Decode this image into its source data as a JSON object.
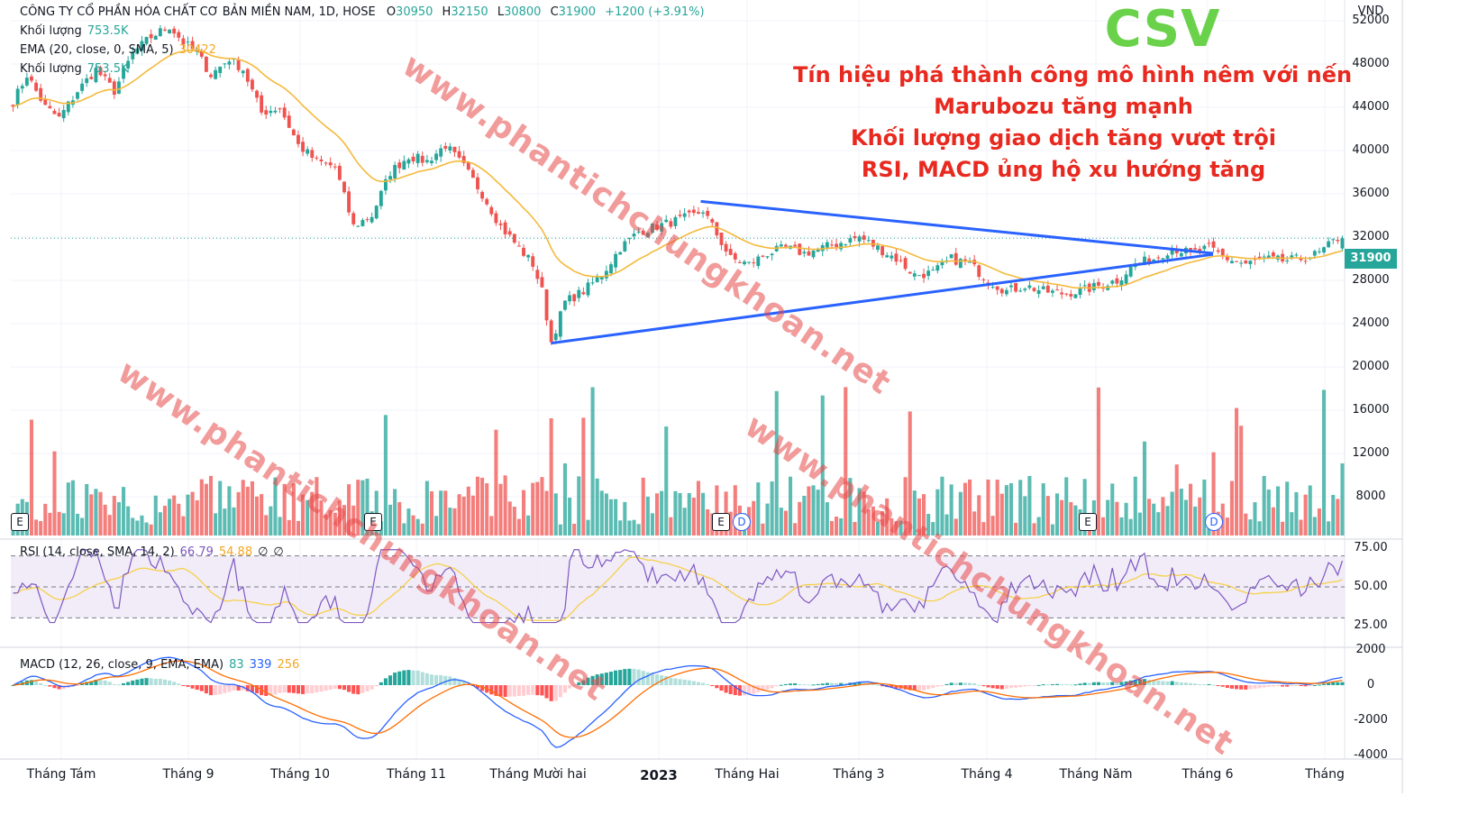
{
  "header": {
    "symbol_line": "CÔNG TY CỔ PHẦN HÓA CHẤT CƠ BẢN MIỀN NAM, 1D, HOSE",
    "open_label": "O",
    "open_value": "30950",
    "high_label": "H",
    "high_value": "32150",
    "low_label": "L",
    "low_value": "30800",
    "close_label": "C",
    "close_value": "31900",
    "change": "+1200 (+3.91%)",
    "volume_label": "Khối lượng",
    "volume_value": "753.5K",
    "ema_label": "EMA (20, close, 0, SMA, 5)",
    "ema_value": "30422",
    "volume_label_2": "Khối lượng",
    "volume_value_2": "753.5K"
  },
  "headline": "CSV",
  "notes": [
    "Tín hiệu phá thành công mô hình nêm với nến",
    "Marubozu tăng mạnh",
    "Khối lượng giao dịch tăng vượt trội",
    "RSI, MACD ủng hộ xu hướng tăng"
  ],
  "currency": "VND",
  "last_price_tag": "31900",
  "watermark_text": "www.phantichchungkhoan.net",
  "event_markers": {
    "earnings": "E",
    "dividend": "D"
  },
  "rsi": {
    "label": "RSI (14, close, SMA, 14, 2)",
    "value": "66.79",
    "ma_value": "54.88",
    "extra1": "∅",
    "extra2": "∅"
  },
  "macd": {
    "label": "MACD (12, 26, close, 9, EMA, EMA)",
    "hist": "83",
    "macd": "339",
    "signal": "256"
  },
  "colors": {
    "up": "#26a69a",
    "down": "#ef5350",
    "ema": "#f5b93c",
    "trendline": "#2962ff",
    "rsi": "#7e57c2",
    "rsi_ma": "#f7d04a",
    "macd": "#2962ff",
    "signal": "#ff6d00",
    "headline": "#6ad24a",
    "notes": "#e8291f",
    "watermark": "#e84848"
  },
  "x_labels": [
    {
      "text": "Tháng Tám",
      "bold": false
    },
    {
      "text": "Tháng 9",
      "bold": false
    },
    {
      "text": "Tháng 10",
      "bold": false
    },
    {
      "text": "Tháng 11",
      "bold": false
    },
    {
      "text": "Tháng Mười hai",
      "bold": false
    },
    {
      "text": "2023",
      "bold": true
    },
    {
      "text": "Tháng Hai",
      "bold": false
    },
    {
      "text": "Tháng 3",
      "bold": false
    },
    {
      "text": "Tháng 4",
      "bold": false
    },
    {
      "text": "Tháng Năm",
      "bold": false
    },
    {
      "text": "Tháng 6",
      "bold": false
    },
    {
      "text": "Tháng",
      "bold": false
    }
  ],
  "chart_data": {
    "type": "candlestick",
    "title": "CÔNG TY CỔ PHẦN HÓA CHẤT CƠ BẢN MIỀN NAM, 1D, HOSE",
    "price_axis": {
      "ticks": [
        "52000",
        "48000",
        "44000",
        "40000",
        "36000",
        "32000",
        "28000",
        "24000",
        "20000",
        "16000",
        "12000",
        "8000"
      ],
      "range": [
        3600,
        54200
      ]
    },
    "rsi_axis": {
      "ticks": [
        "75.00",
        "50.00",
        "25.00"
      ],
      "upper_band": 70,
      "lower_band": 30,
      "range": [
        20,
        80
      ]
    },
    "macd_axis": {
      "ticks": [
        "2000",
        "0",
        "-2000",
        "-4000"
      ],
      "range": [
        -4000,
        2000
      ]
    },
    "months": [
      "Tháng Tám",
      "Tháng 9",
      "Tháng 10",
      "Tháng 11",
      "Tháng Mười hai",
      "2023",
      "Tháng Hai",
      "Tháng 3",
      "Tháng 4",
      "Tháng Năm",
      "Tháng 6",
      "Tháng"
    ],
    "wedge": {
      "upper": [
        {
          "day": 0,
          "price": 35300
        },
        {
          "day": 1,
          "price": 30500
        }
      ],
      "lower": [
        {
          "day": 0,
          "price": 22200
        },
        {
          "day": 1,
          "price": 30400
        }
      ]
    },
    "price_path": [
      [
        0,
        44500
      ],
      [
        3,
        47000
      ],
      [
        7,
        44000
      ],
      [
        10,
        43000
      ],
      [
        14,
        45500
      ],
      [
        18,
        47500
      ],
      [
        22,
        45500
      ],
      [
        26,
        49000
      ],
      [
        30,
        50500
      ],
      [
        34,
        51500
      ],
      [
        37,
        50000
      ],
      [
        40,
        49000
      ],
      [
        43,
        47000
      ],
      [
        47,
        48500
      ],
      [
        50,
        47500
      ],
      [
        54,
        43500
      ],
      [
        58,
        44000
      ],
      [
        62,
        40500
      ],
      [
        66,
        39000
      ],
      [
        70,
        38500
      ],
      [
        74,
        33000
      ],
      [
        78,
        34000
      ],
      [
        82,
        38000
      ],
      [
        86,
        39500
      ],
      [
        90,
        39000
      ],
      [
        94,
        40500
      ],
      [
        98,
        38500
      ],
      [
        102,
        36000
      ],
      [
        106,
        33000
      ],
      [
        110,
        31000
      ],
      [
        113,
        29500
      ],
      [
        115,
        27000
      ],
      [
        117,
        22300
      ],
      [
        120,
        26000
      ],
      [
        124,
        27000
      ],
      [
        128,
        28500
      ],
      [
        132,
        31000
      ],
      [
        136,
        32500
      ],
      [
        140,
        33000
      ],
      [
        144,
        33500
      ],
      [
        148,
        34000
      ],
      [
        150,
        34500
      ],
      [
        152,
        33000
      ],
      [
        156,
        30000
      ],
      [
        160,
        29500
      ],
      [
        164,
        30500
      ],
      [
        168,
        31000
      ],
      [
        172,
        30500
      ],
      [
        176,
        31000
      ],
      [
        180,
        31500
      ],
      [
        184,
        32000
      ],
      [
        188,
        31000
      ],
      [
        192,
        30000
      ],
      [
        196,
        28500
      ],
      [
        200,
        28700
      ],
      [
        204,
        30000
      ],
      [
        208,
        29500
      ],
      [
        212,
        28000
      ],
      [
        216,
        27000
      ],
      [
        220,
        27500
      ],
      [
        224,
        27000
      ],
      [
        228,
        26800
      ],
      [
        232,
        27000
      ],
      [
        236,
        27500
      ],
      [
        240,
        28000
      ],
      [
        244,
        29500
      ],
      [
        248,
        30000
      ],
      [
        252,
        31000
      ],
      [
        256,
        30500
      ],
      [
        260,
        31000
      ],
      [
        264,
        30000
      ],
      [
        268,
        29500
      ],
      [
        272,
        30000
      ],
      [
        276,
        29800
      ],
      [
        280,
        30000
      ],
      [
        284,
        30500
      ],
      [
        288,
        31900
      ]
    ],
    "last_close": 31900,
    "last_volume": "753.5K",
    "ema_last": 30422
  }
}
